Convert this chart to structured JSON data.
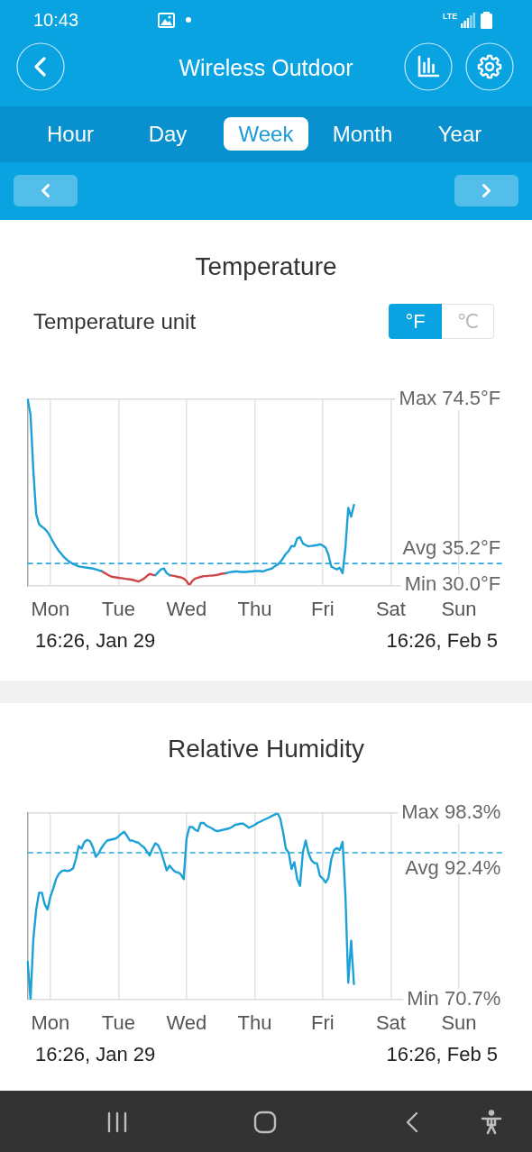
{
  "chart_data": [
    {
      "type": "line",
      "title": "Temperature",
      "annotations": [
        "10:43",
        "LTE",
        "Wireless Outdoor",
        "Hour",
        "Day",
        "Week",
        "Month",
        "Year",
        "Temperature unit",
        "°F",
        "℃",
        "Min",
        "Max",
        "16:26, Jan 29",
        "16:26, Feb 5"
      ],
      "categories": [
        null,
        null,
        null,
        null,
        null,
        null,
        null,
        null,
        "Mon",
        null,
        null,
        null,
        null,
        null,
        null,
        null,
        null,
        null,
        null,
        null,
        null,
        null,
        null,
        null,
        null,
        null,
        null,
        null,
        null,
        null,
        null,
        null,
        "Tue",
        null,
        null,
        null,
        null,
        null,
        null,
        null,
        null,
        null,
        null,
        null,
        null,
        null,
        null,
        null,
        null,
        null,
        null,
        null,
        null,
        null,
        null,
        null,
        "Wed",
        null,
        null,
        null,
        null,
        null,
        null,
        null,
        null,
        null,
        null,
        null,
        null,
        null,
        null,
        null,
        null,
        null,
        null,
        null,
        null,
        null,
        null,
        null,
        "Thu",
        null,
        null,
        null,
        null,
        null,
        null,
        null,
        null,
        null,
        null,
        null,
        null,
        null,
        null,
        null,
        null,
        null,
        null,
        null,
        null,
        null,
        null,
        null,
        "Fri",
        null,
        null,
        null,
        null,
        null,
        null,
        null,
        null,
        null,
        null,
        null,
        null,
        null,
        null,
        null,
        null,
        null,
        null,
        null,
        null,
        null,
        null,
        null,
        "Sat",
        null,
        null,
        null,
        null,
        null,
        null,
        null,
        null,
        null,
        null,
        null,
        null,
        null,
        null,
        null,
        null,
        null,
        null,
        null,
        null,
        null,
        null,
        null,
        "Sun",
        null,
        null,
        null,
        null,
        null,
        null,
        null,
        null,
        null,
        null,
        null,
        null,
        null,
        null,
        null,
        null
      ],
      "series": [
        {
          "color": "#1ba1d6",
          "values": [
            74.5,
            70.8,
            57.3,
            47.0,
            44.6,
            44.0,
            43.5,
            42.7,
            41.6,
            40.3,
            39.2,
            38.2,
            37.4,
            36.6,
            36.0,
            35.5,
            35.1,
            34.8,
            34.5,
            34.4,
            34.3,
            34.2,
            34.1,
            34.0,
            33.8,
            33.6,
            33.4,
            null,
            null,
            null,
            null,
            null,
            null,
            null,
            null,
            null,
            null,
            null,
            null,
            null,
            null,
            null,
            null,
            null,
            null,
            32.4,
            33.1,
            33.8,
            34.0,
            32.9,
            32.4,
            null,
            null,
            null,
            null,
            null,
            null,
            null,
            null,
            null,
            null,
            null,
            null,
            null,
            null,
            null,
            null,
            null,
            null,
            null,
            32.9,
            33.1,
            33.2,
            33.3,
            33.3,
            33.2,
            33.2,
            33.2,
            33.3,
            33.3,
            33.4,
            33.4,
            33.4,
            33.3,
            33.6,
            33.8,
            34.0,
            34.5,
            34.9,
            35.5,
            36.5,
            37.5,
            38.2,
            39.4,
            39.3,
            41.2,
            41.5,
            40.0,
            39.6,
            39.3,
            39.4,
            39.5,
            39.6,
            39.8,
            39.5,
            39.0,
            37.3,
            34.5,
            34.1,
            33.8,
            34.2,
            32.9,
            39.0,
            48.5,
            46.4,
            49.2,
            null,
            null,
            null,
            null,
            null,
            null,
            null,
            null,
            null,
            null,
            null,
            null,
            null,
            null,
            null,
            null,
            null,
            null,
            null,
            null,
            null,
            null,
            null,
            null,
            null,
            null,
            null,
            null,
            null,
            null,
            null,
            null,
            null,
            null,
            null,
            null,
            null,
            null,
            null,
            null,
            null,
            null,
            null,
            null,
            null,
            null,
            null,
            null,
            null,
            null,
            null,
            null,
            null
          ]
        },
        {
          "color": "#cc4646",
          "values": [
            null,
            null,
            null,
            null,
            null,
            null,
            null,
            null,
            null,
            null,
            null,
            null,
            null,
            null,
            null,
            null,
            null,
            null,
            null,
            null,
            null,
            null,
            null,
            null,
            null,
            null,
            33.4,
            33.0,
            32.6,
            32.2,
            32.0,
            31.9,
            31.8,
            31.7,
            31.6,
            31.5,
            31.4,
            31.3,
            31.1,
            30.9,
            31.2,
            31.6,
            32.2,
            32.7,
            32.5,
            32.4,
            null,
            null,
            null,
            null,
            32.4,
            32.3,
            32.2,
            32.0,
            31.9,
            31.6,
            31.0,
            30.0,
            31.0,
            31.6,
            31.8,
            32.0,
            32.2,
            32.2,
            32.3,
            32.3,
            32.4,
            32.5,
            32.7,
            32.8,
            32.9,
            null,
            null,
            null,
            null,
            null,
            null,
            null,
            null,
            null,
            null,
            null,
            null,
            null,
            null,
            null,
            null,
            null,
            null,
            null,
            null,
            null,
            null,
            null,
            null,
            null,
            null,
            null,
            null,
            null,
            null,
            null,
            null,
            null,
            null,
            null,
            null,
            null,
            null,
            null,
            null,
            null,
            null,
            null,
            null,
            null,
            null,
            null,
            null,
            null,
            null,
            null,
            null,
            null,
            null,
            null,
            null,
            null,
            null,
            null,
            null,
            null,
            null,
            null,
            null,
            null,
            null,
            null,
            null,
            null,
            null,
            null,
            null,
            null,
            null,
            null,
            null,
            null,
            null,
            null,
            null,
            null,
            null,
            null,
            null,
            null,
            null,
            null,
            null,
            null,
            null,
            null,
            null,
            null,
            null,
            null,
            null,
            null,
            null
          ]
        }
      ],
      "ylim": [
        30,
        74.5
      ],
      "yticks": [
        {
          "value": 30,
          "label": "30.0°F"
        },
        {
          "value": 74.5,
          "label": "74.5°F"
        }
      ],
      "ref_lines": [
        {
          "axis": "y",
          "value": 35.2,
          "label": "Avg 35.2°F",
          "color": "#2aa8dc",
          "line_style": "dashed"
        }
      ],
      "grid": true,
      "marker": "none"
    },
    {
      "type": "line",
      "title": "Relative Humidity",
      "annotations": [
        "Min",
        "Max",
        "16:26, Jan 29",
        "16:26, Feb 5"
      ],
      "categories": [
        null,
        null,
        null,
        null,
        null,
        null,
        null,
        null,
        "Mon",
        null,
        null,
        null,
        null,
        null,
        null,
        null,
        null,
        null,
        null,
        null,
        null,
        null,
        null,
        null,
        null,
        null,
        null,
        null,
        null,
        null,
        null,
        null,
        "Tue",
        null,
        null,
        null,
        null,
        null,
        null,
        null,
        null,
        null,
        null,
        null,
        null,
        null,
        null,
        null,
        null,
        null,
        null,
        null,
        null,
        null,
        null,
        null,
        "Wed",
        null,
        null,
        null,
        null,
        null,
        null,
        null,
        null,
        null,
        null,
        null,
        null,
        null,
        null,
        null,
        null,
        null,
        null,
        null,
        null,
        null,
        null,
        null,
        "Thu",
        null,
        null,
        null,
        null,
        null,
        null,
        null,
        null,
        null,
        null,
        null,
        null,
        null,
        null,
        null,
        null,
        null,
        null,
        null,
        null,
        null,
        null,
        null,
        "Fri",
        null,
        null,
        null,
        null,
        null,
        null,
        null,
        null,
        null,
        null,
        null,
        null,
        null,
        null,
        null,
        null,
        null,
        null,
        null,
        null,
        null,
        null,
        null,
        "Sat",
        null,
        null,
        null,
        null,
        null,
        null,
        null,
        null,
        null,
        null,
        null,
        null,
        null,
        null,
        null,
        null,
        null,
        null,
        null,
        null,
        null,
        null,
        null,
        "Sun",
        null,
        null,
        null,
        null,
        null,
        null,
        null,
        null,
        null,
        null,
        null,
        null,
        null,
        null,
        null,
        null
      ],
      "series": [
        {
          "color": "#1ba1d6",
          "values": [
            76.3,
            70.7,
            79.7,
            84.0,
            86.5,
            86.5,
            84.8,
            84.0,
            85.9,
            87.1,
            88.5,
            89.3,
            89.7,
            89.8,
            89.7,
            89.8,
            90.1,
            91.5,
            93.4,
            93.0,
            94.0,
            94.3,
            94.1,
            93.2,
            91.8,
            92.3,
            93.1,
            93.7,
            94.2,
            94.3,
            94.4,
            94.5,
            94.8,
            95.2,
            95.5,
            94.9,
            94.2,
            94.2,
            94.0,
            93.9,
            93.5,
            93.2,
            92.6,
            92.0,
            93.0,
            93.8,
            93.5,
            92.6,
            91.2,
            89.8,
            90.5,
            90.0,
            89.6,
            89.5,
            89.2,
            88.5,
            94.5,
            96.2,
            96.2,
            95.8,
            95.6,
            96.8,
            96.8,
            96.4,
            96.2,
            96.0,
            95.7,
            95.6,
            95.7,
            95.8,
            95.9,
            96.0,
            96.2,
            96.5,
            96.6,
            96.7,
            96.7,
            96.4,
            96.1,
            96.3,
            96.5,
            96.8,
            97.0,
            97.2,
            97.4,
            97.6,
            97.8,
            98.0,
            98.3,
            97.5,
            95.5,
            93.0,
            92.4,
            90.0,
            91.0,
            88.5,
            87.5,
            92.5,
            94.2,
            92.3,
            91.3,
            90.9,
            90.8,
            89.0,
            88.6,
            88.0,
            88.7,
            91.4,
            92.8,
            93.1,
            92.8,
            94.0,
            86.0,
            73.2,
            79.4,
            73.0,
            null,
            null,
            null,
            null,
            null,
            null,
            null,
            null,
            null,
            null,
            null,
            null,
            null,
            null,
            null,
            null,
            null,
            null,
            null,
            null,
            null,
            null,
            null,
            null,
            null,
            null,
            null,
            null,
            null,
            null,
            null,
            null,
            null,
            null,
            null,
            null,
            null,
            null,
            null,
            null,
            null,
            null,
            null,
            null,
            null,
            null,
            null,
            null,
            null,
            null,
            null,
            null,
            null
          ]
        }
      ],
      "ylim": [
        70.7,
        98.3
      ],
      "yticks": [
        {
          "value": 70.7,
          "label": "70.7%"
        },
        {
          "value": 98.3,
          "label": "98.3%"
        }
      ],
      "ref_lines": [
        {
          "axis": "y",
          "value": 92.4,
          "label": "Avg 92.4%",
          "color": "#2aa8dc",
          "line_style": "dashed"
        }
      ],
      "grid": true,
      "marker": "none"
    }
  ]
}
